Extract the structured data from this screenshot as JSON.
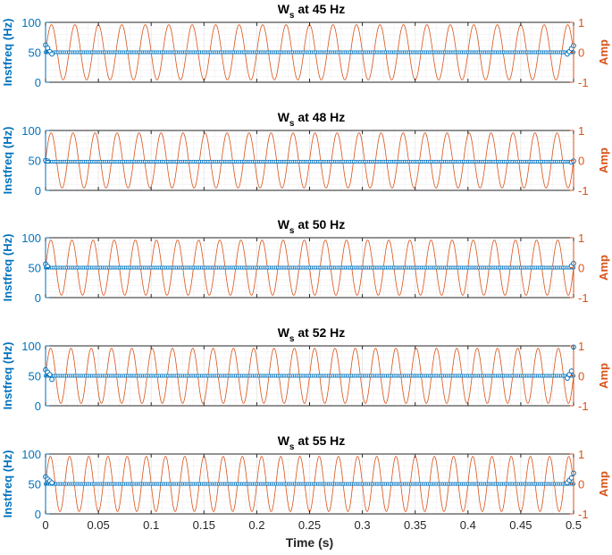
{
  "figure": {
    "colors": {
      "left_axis": "#0072BD",
      "right_axis": "#D95319",
      "axes_box": "#262626",
      "grid": "#e6e6e6",
      "marker": "#0072BD",
      "marker_face": "#ffffff"
    },
    "xlabel": "Time (s)",
    "xlim": [
      0,
      0.5
    ],
    "xticks": [
      "0",
      "0.05",
      "0.1",
      "0.15",
      "0.2",
      "0.25",
      "0.3",
      "0.35",
      "0.4",
      "0.45",
      "0.5"
    ],
    "left_ylabel": "Instfreq (Hz)",
    "left_ylim": [
      0,
      100
    ],
    "left_yticks": [
      "0",
      "50",
      "100"
    ],
    "right_ylabel": "Amp",
    "right_ylim": [
      -1,
      1
    ],
    "right_yticks": [
      "-1",
      "0",
      "1"
    ]
  },
  "chart_data": [
    {
      "type": "line",
      "title_main": "W",
      "title_sub": "s",
      "title_rest": " at 45 Hz",
      "signal_freq_hz": 45,
      "series": [],
      "instfreq_mean_hz": 50,
      "edge_points": [
        {
          "x": 0.0,
          "y": 62
        },
        {
          "x": 0.002,
          "y": 57
        },
        {
          "x": 0.004,
          "y": 51
        },
        {
          "x": 0.006,
          "y": 47
        },
        {
          "x": 0.494,
          "y": 47
        },
        {
          "x": 0.496,
          "y": 51
        },
        {
          "x": 0.498,
          "y": 56
        },
        {
          "x": 0.5,
          "y": 61
        }
      ],
      "xlim": [
        0,
        0.5
      ],
      "left_ylim": [
        0,
        100
      ],
      "right_ylim": [
        -1,
        1
      ],
      "grid": true
    },
    {
      "type": "line",
      "title_main": "W",
      "title_sub": "s",
      "title_rest": " at 48 Hz",
      "signal_freq_hz": 48,
      "series": [],
      "instfreq_mean_hz": 48,
      "edge_points": [
        {
          "x": 0.0,
          "y": 50
        },
        {
          "x": 0.002,
          "y": 49
        },
        {
          "x": 0.498,
          "y": 47
        },
        {
          "x": 0.5,
          "y": 49
        }
      ],
      "xlim": [
        0,
        0.5
      ],
      "left_ylim": [
        0,
        100
      ],
      "right_ylim": [
        -1,
        1
      ],
      "grid": true
    },
    {
      "type": "line",
      "title_main": "W",
      "title_sub": "s",
      "title_rest": " at 50 Hz",
      "signal_freq_hz": 50,
      "series": [],
      "instfreq_mean_hz": 50,
      "edge_points": [
        {
          "x": 0.0,
          "y": 56
        },
        {
          "x": 0.002,
          "y": 52
        },
        {
          "x": 0.498,
          "y": 53
        },
        {
          "x": 0.5,
          "y": 57
        }
      ],
      "xlim": [
        0,
        0.5
      ],
      "left_ylim": [
        0,
        100
      ],
      "right_ylim": [
        -1,
        1
      ],
      "grid": true
    },
    {
      "type": "line",
      "title_main": "W",
      "title_sub": "s",
      "title_rest": " at 52 Hz",
      "signal_freq_hz": 52,
      "series": [],
      "instfreq_mean_hz": 50,
      "edge_points": [
        {
          "x": 0.0,
          "y": 60
        },
        {
          "x": 0.002,
          "y": 56
        },
        {
          "x": 0.004,
          "y": 52
        },
        {
          "x": 0.006,
          "y": 44
        },
        {
          "x": 0.494,
          "y": 46
        },
        {
          "x": 0.496,
          "y": 52
        },
        {
          "x": 0.498,
          "y": 58
        },
        {
          "x": 0.5,
          "y": 98
        }
      ],
      "xlim": [
        0,
        0.5
      ],
      "left_ylim": [
        0,
        100
      ],
      "right_ylim": [
        -1,
        1
      ],
      "grid": true
    },
    {
      "type": "line",
      "title_main": "W",
      "title_sub": "s",
      "title_rest": " at 55 Hz",
      "signal_freq_hz": 55,
      "series": [],
      "instfreq_mean_hz": 50,
      "edge_points": [
        {
          "x": 0.0,
          "y": 62
        },
        {
          "x": 0.002,
          "y": 58
        },
        {
          "x": 0.004,
          "y": 55
        },
        {
          "x": 0.006,
          "y": 52
        },
        {
          "x": 0.494,
          "y": 52
        },
        {
          "x": 0.496,
          "y": 56
        },
        {
          "x": 0.498,
          "y": 60
        },
        {
          "x": 0.5,
          "y": 68
        }
      ],
      "xlim": [
        0,
        0.5
      ],
      "left_ylim": [
        0,
        100
      ],
      "right_ylim": [
        -1,
        1
      ],
      "grid": true
    }
  ]
}
